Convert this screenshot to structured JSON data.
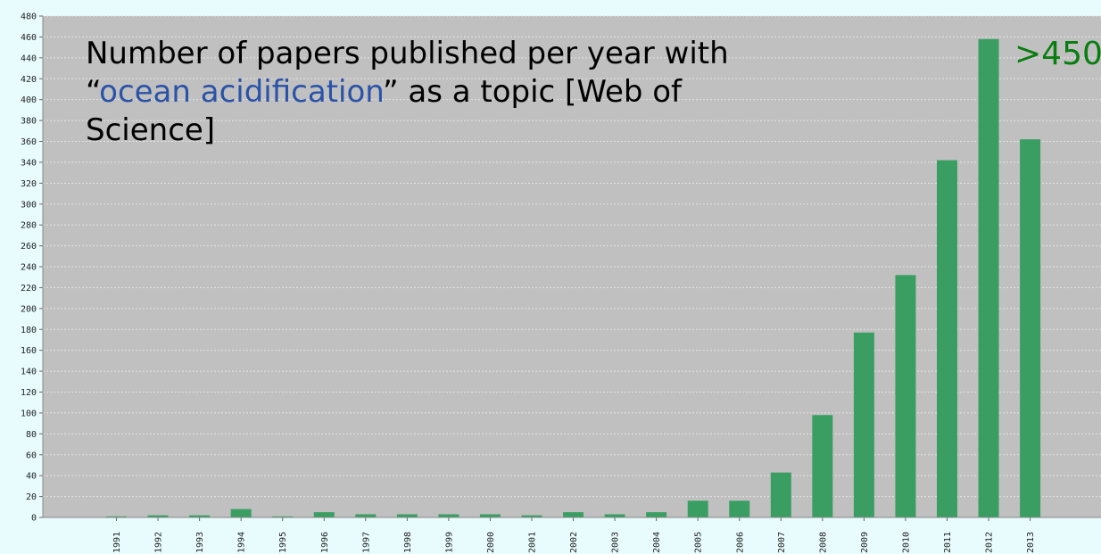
{
  "chart_data": {
    "type": "bar",
    "categories": [
      "1991",
      "1992",
      "1993",
      "1994",
      "1995",
      "1996",
      "1997",
      "1998",
      "1999",
      "2000",
      "2001",
      "2002",
      "2003",
      "2004",
      "2005",
      "2006",
      "2007",
      "2008",
      "2009",
      "2010",
      "2011",
      "2012",
      "2013"
    ],
    "values": [
      1,
      2,
      2,
      8,
      1,
      5,
      3,
      3,
      3,
      3,
      2,
      5,
      3,
      5,
      16,
      16,
      43,
      98,
      177,
      232,
      342,
      458,
      362
    ],
    "ylim": [
      0,
      480
    ],
    "yticks": [
      0,
      20,
      40,
      60,
      80,
      100,
      120,
      140,
      160,
      180,
      200,
      220,
      240,
      260,
      280,
      300,
      320,
      340,
      360,
      380,
      400,
      420,
      440,
      460,
      480
    ],
    "grid": true,
    "title": {
      "part1": "Number of papers published per year with “",
      "highlight": "ocean acidification",
      "part2": "” as a topic [Web of Science]"
    },
    "annotation": ">450",
    "colors": {
      "bar": "#3a9e63",
      "plot_bg": "#c0c0c0",
      "page_bg": "#e8fbfd",
      "highlight": "#2a52a8",
      "annotation": "#0a7d12"
    }
  }
}
